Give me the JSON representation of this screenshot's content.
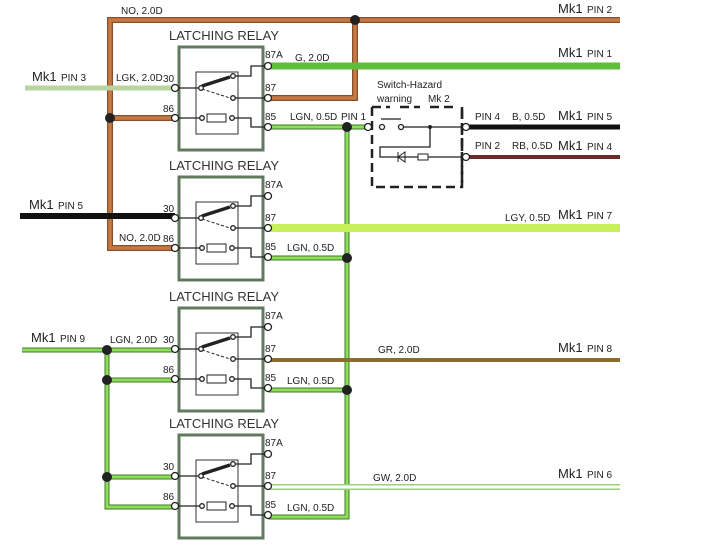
{
  "colors": {
    "orange_wire": "#c47a45",
    "green_wire": "#5cbf3a",
    "light_green_wire": "#7fd04a",
    "pale_green_wire": "#b9d3a3",
    "yellow_green_wire": "#c8f05a",
    "black_wire": "#111111",
    "maroon_wire": "#6b2b2b",
    "brown_wire": "#8b6b2e",
    "relay_box": "#5f7a5f"
  },
  "relays": [
    {
      "title": "LATCHING RELAY",
      "pins": {
        "p30": "30",
        "p86": "86",
        "p87a": "87A",
        "p87": "87",
        "p85": "85"
      }
    },
    {
      "title": "LATCHING RELAY",
      "pins": {
        "p30": "30",
        "p86": "86",
        "p87a": "87A",
        "p87": "87",
        "p85": "85"
      }
    },
    {
      "title": "LATCHING RELAY",
      "pins": {
        "p30": "30",
        "p86": "86",
        "p87a": "87A",
        "p87": "87",
        "p85": "85"
      }
    },
    {
      "title": "LATCHING RELAY",
      "pins": {
        "p30": "30",
        "p86": "86",
        "p87a": "87A",
        "p87": "87",
        "p85": "85"
      }
    }
  ],
  "wires": {
    "no_top": "NO, 2.0D",
    "no_bottom": "NO, 2.0D",
    "g": "G, 2.0D",
    "lgk": "LGK, 2.0D",
    "lgn1": "LGN, 0.5D",
    "lgn2": "LGN, 0.5D",
    "lgn3": "LGN, 0.5D",
    "lgn4": "LGN, 0.5D",
    "lgn_in": "LGN, 2.0D",
    "b": "B, 0.5D",
    "rb": "RB, 0.5D",
    "lgy": "LGY, 0.5D",
    "gr": "GR, 2.0D",
    "gw": "GW, 2.0D"
  },
  "connectors": {
    "mk1": "Mk1",
    "pin2": "PIN 2",
    "pin1": "PIN 1",
    "pin3": "PIN 3",
    "pin5": "PIN 5",
    "pin5b": "PIN 5",
    "pin4": "PIN 4",
    "pin7": "PIN 7",
    "pin9": "PIN 9",
    "pin8": "PIN 8",
    "pin6": "PIN 6",
    "sw_pin1": "PIN 1",
    "sw_pin4": "PIN 4",
    "sw_pin2": "PIN 2"
  },
  "switch": {
    "title_line1": "Switch-Hazard",
    "title_line2": "warning",
    "mk2": "Mk 2"
  }
}
